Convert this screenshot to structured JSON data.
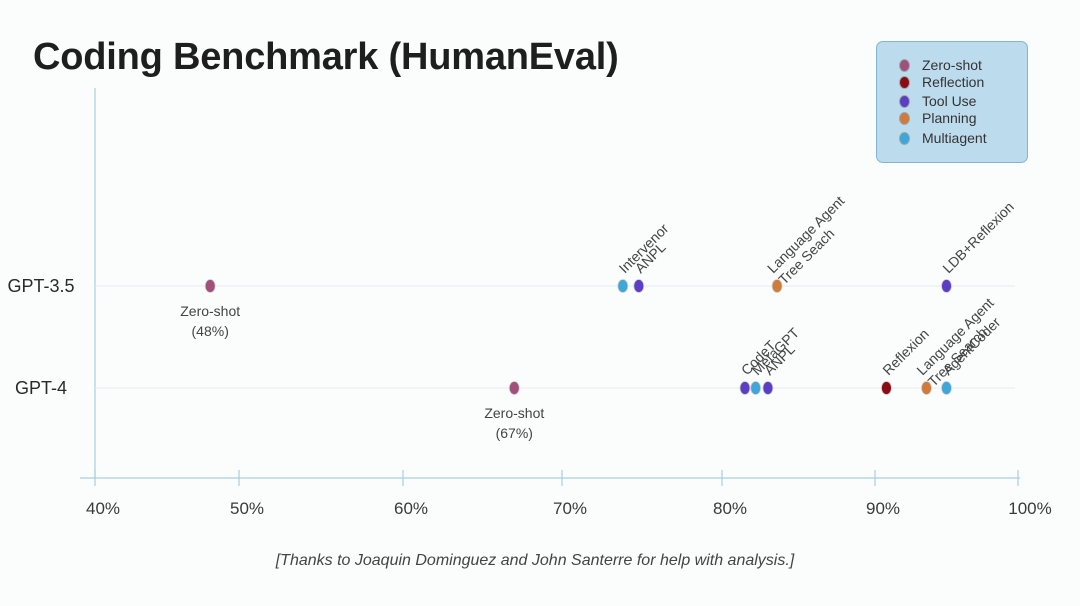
{
  "slide": {
    "title": "Coding Benchmark (HumanEval)",
    "footnote": "[Thanks to Joaquin Dominguez and John Santerre for help with analysis.]"
  },
  "colors": {
    "Zero-shot": "#a0507a",
    "Reflection": "#8b0d14",
    "Tool Use": "#5b3ec4",
    "Planning": "#d07a3c",
    "Multiagent": "#3ea6d8"
  },
  "chart_data": {
    "type": "scatter",
    "title": "Coding Benchmark (HumanEval)",
    "xlabel": "",
    "ylabel": "",
    "xlim": [
      40,
      100
    ],
    "x_ticks": [
      "40%",
      "50%",
      "60%",
      "70%",
      "80%",
      "90%",
      "100%"
    ],
    "categories": [
      "GPT-3.5",
      "GPT-4"
    ],
    "legend": [
      "Zero-shot",
      "Reflection",
      "Tool Use",
      "Planning",
      "Multiagent"
    ],
    "points": [
      {
        "model": "GPT-3.5",
        "x": 48,
        "label": "Zero-shot",
        "sublabel": "(48%)",
        "type": "Zero-shot"
      },
      {
        "model": "GPT-3.5",
        "x": 73.8,
        "label": "Intervenor",
        "type": "Multiagent"
      },
      {
        "model": "GPT-3.5",
        "x": 74.8,
        "label": "ANPL",
        "type": "Tool Use"
      },
      {
        "model": "GPT-3.5",
        "x": 83.6,
        "label": "Language Agent\nTree Seach",
        "type": "Planning"
      },
      {
        "model": "GPT-3.5",
        "x": 95.0,
        "label": "LDB+Reflexion",
        "type": "Tool Use"
      },
      {
        "model": "GPT-4",
        "x": 67,
        "label": "Zero-shot",
        "sublabel": "(67%)",
        "type": "Zero-shot"
      },
      {
        "model": "GPT-4",
        "x": 81.5,
        "label": "CodeT",
        "type": "Tool Use"
      },
      {
        "model": "GPT-4",
        "x": 82.2,
        "label": "MetaGPT",
        "type": "Multiagent"
      },
      {
        "model": "GPT-4",
        "x": 83.0,
        "label": "ANPL",
        "type": "Tool Use"
      },
      {
        "model": "GPT-4",
        "x": 90.8,
        "label": "Reflexion",
        "type": "Reflection"
      },
      {
        "model": "GPT-4",
        "x": 93.6,
        "label": "Language Agent\nTree Search",
        "type": "Planning"
      },
      {
        "model": "GPT-4",
        "x": 95.0,
        "label": "AgentCoder",
        "type": "Multiagent"
      }
    ]
  }
}
